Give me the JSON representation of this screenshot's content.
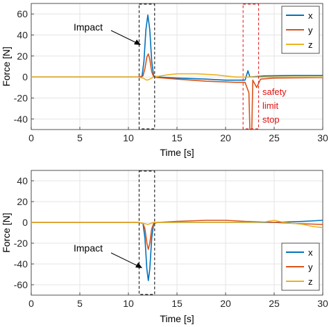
{
  "colors": {
    "x": "#0072BD",
    "y": "#D95319",
    "z": "#EDB120",
    "annotation_red": "#E01010",
    "grid": "#e4e4e4",
    "axis": "#262626"
  },
  "chart_data": [
    {
      "type": "line",
      "xlabel": "Time [s]",
      "ylabel": "Force [N]",
      "xlim": [
        0,
        30
      ],
      "ylim": [
        -50,
        70
      ],
      "xticks": [
        "0",
        "5",
        "10",
        "15",
        "20",
        "25",
        "30"
      ],
      "yticks": [
        "-40",
        "-20",
        "0",
        "20",
        "40",
        "60"
      ],
      "grid": true,
      "legend_position": "top-right",
      "series": [
        {
          "name": "x",
          "color": "#0072BD",
          "points": [
            [
              0,
              0
            ],
            [
              11,
              0
            ],
            [
              11.4,
              0.5
            ],
            [
              11.6,
              15
            ],
            [
              11.8,
              45
            ],
            [
              12.0,
              59
            ],
            [
              12.2,
              45
            ],
            [
              12.4,
              15
            ],
            [
              12.6,
              1
            ],
            [
              13,
              0
            ],
            [
              15,
              -1
            ],
            [
              18,
              -2
            ],
            [
              20,
              -3
            ],
            [
              22,
              -3
            ],
            [
              22.3,
              6
            ],
            [
              22.5,
              0
            ],
            [
              24,
              1
            ],
            [
              27,
              1.5
            ],
            [
              30,
              1.5
            ]
          ]
        },
        {
          "name": "y",
          "color": "#D95319",
          "points": [
            [
              0,
              0
            ],
            [
              11,
              0
            ],
            [
              11.5,
              1
            ],
            [
              11.7,
              8
            ],
            [
              11.9,
              19
            ],
            [
              12.05,
              22
            ],
            [
              12.2,
              17
            ],
            [
              12.4,
              5
            ],
            [
              12.6,
              0
            ],
            [
              13,
              -0.5
            ],
            [
              15,
              -2
            ],
            [
              18,
              -4
            ],
            [
              21,
              -5
            ],
            [
              22,
              -5
            ],
            [
              22.4,
              -15
            ],
            [
              22.5,
              -50
            ],
            [
              22.7,
              -50
            ],
            [
              22.8,
              -3
            ],
            [
              23.2,
              -10
            ],
            [
              23.6,
              -2
            ],
            [
              25,
              -1
            ],
            [
              30,
              -0.5
            ]
          ]
        },
        {
          "name": "z",
          "color": "#EDB120",
          "points": [
            [
              0,
              0
            ],
            [
              11,
              0
            ],
            [
              11.5,
              -1
            ],
            [
              11.9,
              -3
            ],
            [
              12.2,
              -2
            ],
            [
              12.6,
              0
            ],
            [
              14,
              2
            ],
            [
              15,
              3
            ],
            [
              17,
              3
            ],
            [
              19,
              2
            ],
            [
              21,
              0
            ],
            [
              22.5,
              0
            ],
            [
              24,
              0
            ],
            [
              27,
              0
            ],
            [
              30,
              0
            ]
          ]
        }
      ],
      "annotations": [
        {
          "text": "Impact",
          "x": 11.8,
          "y": 59
        },
        {
          "text": "safety",
          "color": "#E01010"
        },
        {
          "text": "limit",
          "color": "#E01010"
        },
        {
          "text": "stop",
          "color": "#E01010"
        }
      ],
      "highlight_windows": [
        {
          "xrange": [
            11.1,
            12.7
          ],
          "color": "#000000"
        },
        {
          "xrange": [
            21.8,
            23.4
          ],
          "color": "#E01010"
        }
      ]
    },
    {
      "type": "line",
      "xlabel": "Time [s]",
      "ylabel": "Force [N]",
      "xlim": [
        0,
        30
      ],
      "ylim": [
        -70,
        50
      ],
      "xticks": [
        "0",
        "5",
        "10",
        "15",
        "20",
        "25",
        "30"
      ],
      "yticks": [
        "-60",
        "-40",
        "-20",
        "0",
        "20",
        "40"
      ],
      "grid": true,
      "legend_position": "bottom-right",
      "series": [
        {
          "name": "x",
          "color": "#0072BD",
          "points": [
            [
              0,
              0
            ],
            [
              11,
              0
            ],
            [
              11.5,
              -1
            ],
            [
              11.7,
              -15
            ],
            [
              11.9,
              -45
            ],
            [
              12.05,
              -56
            ],
            [
              12.2,
              -45
            ],
            [
              12.4,
              -15
            ],
            [
              12.6,
              -1
            ],
            [
              13,
              0
            ],
            [
              15,
              0
            ],
            [
              20,
              0
            ],
            [
              25,
              0
            ],
            [
              28,
              1
            ],
            [
              30,
              2
            ]
          ]
        },
        {
          "name": "y",
          "color": "#D95319",
          "points": [
            [
              0,
              0
            ],
            [
              11,
              0
            ],
            [
              11.5,
              -1
            ],
            [
              11.7,
              -6
            ],
            [
              11.9,
              -20
            ],
            [
              12.05,
              -26
            ],
            [
              12.2,
              -20
            ],
            [
              12.4,
              -6
            ],
            [
              12.6,
              -1
            ],
            [
              13,
              0
            ],
            [
              15,
              1
            ],
            [
              18,
              2
            ],
            [
              20,
              2
            ],
            [
              22,
              1
            ],
            [
              24,
              0.5
            ],
            [
              25,
              0
            ],
            [
              27,
              -1
            ],
            [
              30,
              -2
            ]
          ]
        },
        {
          "name": "z",
          "color": "#EDB120",
          "points": [
            [
              0,
              0
            ],
            [
              11,
              0
            ],
            [
              11.6,
              -1
            ],
            [
              12,
              -2
            ],
            [
              12.6,
              0
            ],
            [
              13,
              0
            ],
            [
              15,
              0
            ],
            [
              18,
              0
            ],
            [
              20,
              0
            ],
            [
              22,
              0
            ],
            [
              24,
              0.5
            ],
            [
              25,
              2
            ],
            [
              26,
              0
            ],
            [
              27,
              -1
            ],
            [
              28,
              -2
            ],
            [
              29,
              -4
            ],
            [
              30,
              -5
            ]
          ]
        }
      ],
      "annotations": [
        {
          "text": "Impact",
          "x": 12.0,
          "y": -56
        }
      ],
      "highlight_windows": [
        {
          "xrange": [
            11.1,
            12.7
          ],
          "color": "#000000"
        }
      ]
    }
  ]
}
